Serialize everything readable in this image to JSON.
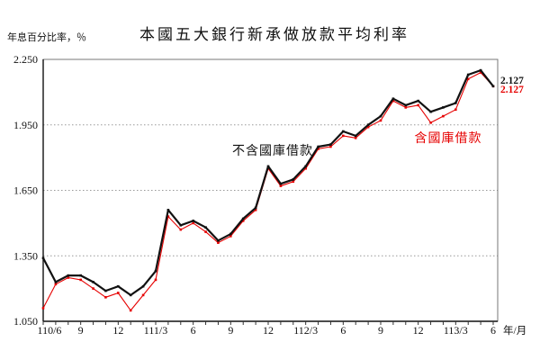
{
  "chart_data": {
    "type": "line",
    "title": "本國五大銀行新承做放款平均利率",
    "y_axis_unit": "年息百分比率，％",
    "x_axis_unit": "年/月",
    "ylim": [
      1.05,
      2.25
    ],
    "grid": "horizontal-dashed",
    "grid_values": [
      1.35,
      1.65,
      1.95
    ],
    "y_ticks": [
      {
        "label": "2.250",
        "value": 2.25
      },
      {
        "label": "1.950",
        "value": 1.95
      },
      {
        "label": "1.650",
        "value": 1.65
      },
      {
        "label": "1.350",
        "value": 1.35
      },
      {
        "label": "1.050",
        "value": 1.05
      }
    ],
    "x_tick_labels": [
      {
        "index": 0,
        "label": "110/6"
      },
      {
        "index": 3,
        "label": "9"
      },
      {
        "index": 6,
        "label": "12"
      },
      {
        "index": 9,
        "label": "111/3"
      },
      {
        "index": 12,
        "label": "6"
      },
      {
        "index": 15,
        "label": "9"
      },
      {
        "index": 18,
        "label": "12"
      },
      {
        "index": 21,
        "label": "112/3"
      },
      {
        "index": 24,
        "label": "6"
      },
      {
        "index": 27,
        "label": "9"
      },
      {
        "index": 30,
        "label": "12"
      },
      {
        "index": 33,
        "label": "113/3"
      },
      {
        "index": 36,
        "label": "6"
      }
    ],
    "categories": [
      "110/6",
      "110/7",
      "110/8",
      "110/9",
      "110/10",
      "110/11",
      "110/12",
      "111/1",
      "111/2",
      "111/3",
      "111/4",
      "111/5",
      "111/6",
      "111/7",
      "111/8",
      "111/9",
      "111/10",
      "111/11",
      "111/12",
      "112/1",
      "112/2",
      "112/3",
      "112/4",
      "112/5",
      "112/6",
      "112/7",
      "112/8",
      "112/9",
      "112/10",
      "112/11",
      "112/12",
      "113/1",
      "113/2",
      "113/3",
      "113/4",
      "113/5",
      "113/6"
    ],
    "series": [
      {
        "name": "不含國庫借款",
        "color": "#111111",
        "end_label": "2.127",
        "values": [
          1.34,
          1.23,
          1.26,
          1.26,
          1.23,
          1.19,
          1.21,
          1.17,
          1.21,
          1.28,
          1.56,
          1.49,
          1.51,
          1.48,
          1.42,
          1.45,
          1.52,
          1.57,
          1.76,
          1.68,
          1.7,
          1.76,
          1.85,
          1.86,
          1.92,
          1.9,
          1.95,
          1.99,
          2.07,
          2.04,
          2.06,
          2.01,
          2.03,
          2.05,
          2.18,
          2.2,
          2.127
        ]
      },
      {
        "name": "含國庫借款",
        "color": "#e60000",
        "end_label": "2.127",
        "values": [
          1.11,
          1.22,
          1.25,
          1.24,
          1.2,
          1.16,
          1.18,
          1.1,
          1.17,
          1.24,
          1.53,
          1.47,
          1.5,
          1.46,
          1.41,
          1.44,
          1.51,
          1.56,
          1.75,
          1.67,
          1.69,
          1.75,
          1.84,
          1.85,
          1.9,
          1.89,
          1.94,
          1.97,
          2.06,
          2.03,
          2.04,
          1.96,
          1.99,
          2.02,
          2.16,
          2.19,
          2.127
        ]
      }
    ],
    "legend_position": "inline-annotations"
  }
}
